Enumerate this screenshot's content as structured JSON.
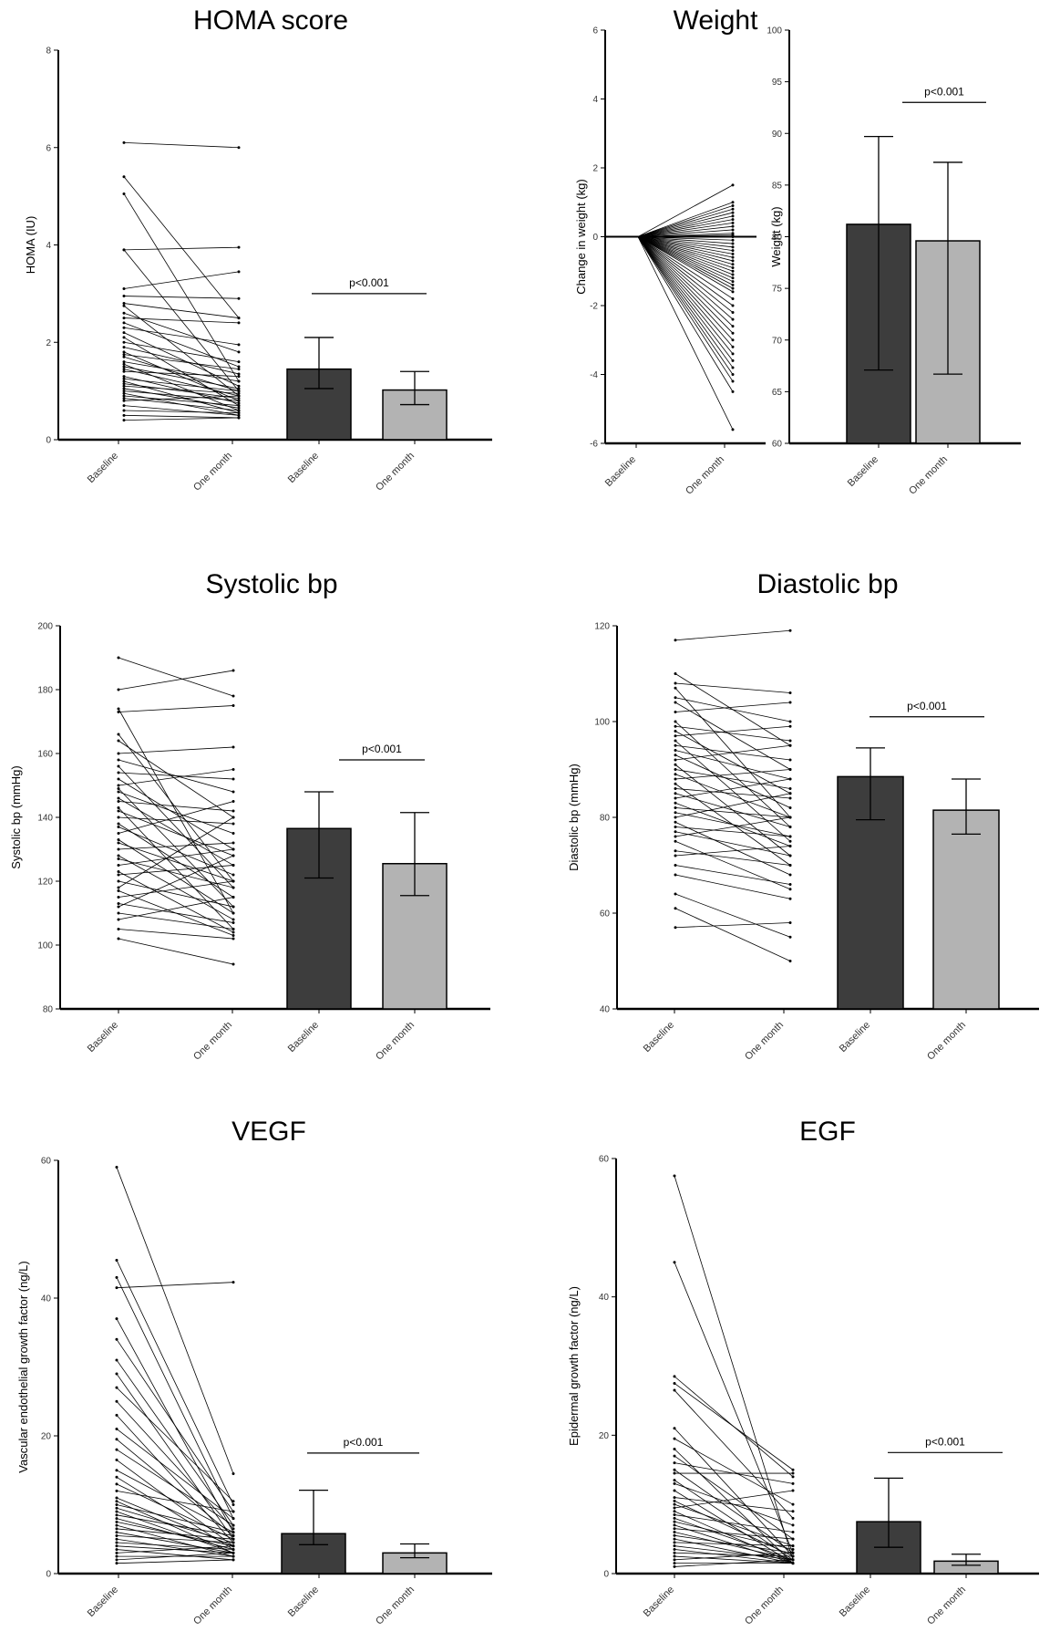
{
  "chart_data": [
    {
      "id": "homa",
      "type": "bar",
      "title": "HOMA score",
      "ylabel": "HOMA (IU)",
      "ylim": [
        0,
        8
      ],
      "yticks": [
        "0",
        "2",
        "4",
        "6",
        "8"
      ],
      "categories": [
        "Baseline",
        "One month",
        "Baseline",
        "One month"
      ],
      "pvalue": "p<0.001",
      "paired_lines": [
        [
          6.1,
          6.0
        ],
        [
          5.4,
          2.5
        ],
        [
          5.05,
          1.2
        ],
        [
          3.9,
          3.95
        ],
        [
          3.9,
          1.0
        ],
        [
          3.1,
          3.45
        ],
        [
          2.95,
          2.9
        ],
        [
          2.8,
          2.5
        ],
        [
          2.75,
          0.9
        ],
        [
          2.6,
          1.8
        ],
        [
          2.5,
          2.4
        ],
        [
          2.4,
          1.5
        ],
        [
          2.3,
          1.95
        ],
        [
          2.2,
          1.1
        ],
        [
          2.1,
          0.7
        ],
        [
          2.0,
          1.6
        ],
        [
          1.9,
          1.35
        ],
        [
          1.8,
          0.8
        ],
        [
          1.75,
          1.45
        ],
        [
          1.7,
          1.0
        ],
        [
          1.6,
          1.2
        ],
        [
          1.55,
          0.6
        ],
        [
          1.5,
          1.05
        ],
        [
          1.45,
          0.9
        ],
        [
          1.4,
          1.3
        ],
        [
          1.3,
          0.75
        ],
        [
          1.25,
          1.0
        ],
        [
          1.2,
          0.55
        ],
        [
          1.15,
          0.85
        ],
        [
          1.1,
          0.95
        ],
        [
          1.05,
          0.65
        ],
        [
          1.0,
          0.8
        ],
        [
          0.95,
          0.5
        ],
        [
          0.9,
          0.7
        ],
        [
          0.85,
          0.6
        ],
        [
          0.8,
          0.9
        ],
        [
          0.7,
          0.5
        ],
        [
          0.6,
          0.55
        ],
        [
          0.5,
          0.45
        ],
        [
          0.4,
          0.45
        ]
      ],
      "series": [
        {
          "name": "Baseline",
          "median": 1.45,
          "err_low": 1.05,
          "err_high": 2.1,
          "color": "#3d3d3d"
        },
        {
          "name": "One month",
          "median": 1.02,
          "err_low": 0.72,
          "err_high": 1.4,
          "color": "#b3b3b3"
        }
      ]
    },
    {
      "id": "weight_change",
      "type": "line",
      "title": "Weight",
      "ylabel": "Change in weight (kg)",
      "ylim": [
        -6,
        6
      ],
      "yticks": [
        "-6",
        "-4",
        "-2",
        "0",
        "2",
        "4",
        "6"
      ],
      "categories": [
        "Baseline",
        "One month"
      ],
      "change_values": [
        1.5,
        1.0,
        0.9,
        0.8,
        0.7,
        0.6,
        0.5,
        0.4,
        0.3,
        0.2,
        0.1,
        0.05,
        0.0,
        -0.1,
        -0.2,
        -0.3,
        -0.4,
        -0.5,
        -0.6,
        -0.7,
        -0.8,
        -0.9,
        -1.0,
        -1.1,
        -1.2,
        -1.3,
        -1.4,
        -1.5,
        -1.6,
        -1.8,
        -2.0,
        -2.2,
        -2.4,
        -2.6,
        -2.8,
        -3.0,
        -3.2,
        -3.4,
        -3.6,
        -3.8,
        -4.0,
        -4.2,
        -4.5,
        -5.6
      ]
    },
    {
      "id": "weight_bar",
      "type": "bar",
      "title": "",
      "ylabel": "Weight (kg)",
      "ylim": [
        60,
        100
      ],
      "yticks": [
        "60",
        "65",
        "70",
        "75",
        "80",
        "85",
        "90",
        "95",
        "100"
      ],
      "categories": [
        "Baseline",
        "One month"
      ],
      "pvalue": "p<0.001",
      "series": [
        {
          "name": "Baseline",
          "median": 81.2,
          "err_low": 67.1,
          "err_high": 89.7,
          "color": "#3d3d3d"
        },
        {
          "name": "One month",
          "median": 79.6,
          "err_low": 66.7,
          "err_high": 87.2,
          "color": "#b3b3b3"
        }
      ]
    },
    {
      "id": "systolic",
      "type": "bar",
      "title": "Systolic bp",
      "ylabel": "Systolic bp (mmHg)",
      "ylim": [
        80,
        200
      ],
      "yticks": [
        "80",
        "100",
        "120",
        "140",
        "160",
        "180",
        "200"
      ],
      "categories": [
        "Baseline",
        "One month",
        "Baseline",
        "One month"
      ],
      "pvalue": "p<0.001",
      "paired_lines": [
        [
          190,
          178
        ],
        [
          180,
          186
        ],
        [
          174,
          110
        ],
        [
          173,
          175
        ],
        [
          166,
          120
        ],
        [
          164,
          140
        ],
        [
          160,
          162
        ],
        [
          158,
          148
        ],
        [
          156,
          118
        ],
        [
          154,
          152
        ],
        [
          152,
          130
        ],
        [
          150,
          155
        ],
        [
          149,
          112
        ],
        [
          148,
          135
        ],
        [
          146,
          125
        ],
        [
          145,
          142
        ],
        [
          143,
          105
        ],
        [
          142,
          128
        ],
        [
          140,
          138
        ],
        [
          138,
          115
        ],
        [
          137,
          122
        ],
        [
          135,
          145
        ],
        [
          133,
          110
        ],
        [
          132,
          120
        ],
        [
          130,
          132
        ],
        [
          128,
          108
        ],
        [
          127,
          118
        ],
        [
          125,
          130
        ],
        [
          123,
          104
        ],
        [
          122,
          125
        ],
        [
          120,
          112
        ],
        [
          118,
          140
        ],
        [
          117,
          103
        ],
        [
          115,
          120
        ],
        [
          113,
          107
        ],
        [
          112,
          128
        ],
        [
          110,
          105
        ],
        [
          108,
          115
        ],
        [
          105,
          102
        ],
        [
          102,
          94
        ]
      ],
      "series": [
        {
          "name": "Baseline",
          "median": 136.5,
          "err_low": 121.0,
          "err_high": 148.0,
          "color": "#3d3d3d"
        },
        {
          "name": "One month",
          "median": 125.5,
          "err_low": 115.5,
          "err_high": 141.5,
          "color": "#b3b3b3"
        }
      ]
    },
    {
      "id": "diastolic",
      "type": "bar",
      "title": "Diastolic bp",
      "ylabel": "Diastolic bp (mmHg)",
      "ylim": [
        40,
        120
      ],
      "yticks": [
        "40",
        "60",
        "80",
        "100",
        "120"
      ],
      "categories": [
        "Baseline",
        "One month",
        "Baseline",
        "One month"
      ],
      "pvalue": "p<0.001",
      "paired_lines": [
        [
          117,
          119
        ],
        [
          110,
          95
        ],
        [
          108,
          106
        ],
        [
          107,
          80
        ],
        [
          105,
          100
        ],
        [
          104,
          90
        ],
        [
          102,
          104
        ],
        [
          100,
          78
        ],
        [
          99,
          96
        ],
        [
          98,
          85
        ],
        [
          97,
          99
        ],
        [
          96,
          75
        ],
        [
          95,
          92
        ],
        [
          94,
          88
        ],
        [
          93,
          82
        ],
        [
          92,
          95
        ],
        [
          91,
          72
        ],
        [
          90,
          86
        ],
        [
          89,
          80
        ],
        [
          88,
          90
        ],
        [
          87,
          70
        ],
        [
          86,
          84
        ],
        [
          85,
          78
        ],
        [
          84,
          88
        ],
        [
          83,
          74
        ],
        [
          82,
          80
        ],
        [
          81,
          76
        ],
        [
          80,
          85
        ],
        [
          79,
          68
        ],
        [
          78,
          76
        ],
        [
          77,
          72
        ],
        [
          76,
          80
        ],
        [
          75,
          65
        ],
        [
          73,
          70
        ],
        [
          72,
          74
        ],
        [
          70,
          66
        ],
        [
          68,
          63
        ],
        [
          64,
          55
        ],
        [
          61,
          50
        ],
        [
          57,
          58
        ]
      ],
      "series": [
        {
          "name": "Baseline",
          "median": 88.5,
          "err_low": 79.5,
          "err_high": 94.5,
          "color": "#3d3d3d"
        },
        {
          "name": "One month",
          "median": 81.5,
          "err_low": 76.5,
          "err_high": 88.0,
          "color": "#b3b3b3"
        }
      ]
    },
    {
      "id": "vegf",
      "type": "bar",
      "title": "VEGF",
      "ylabel": "Vascular endothelial growth factor (ng/L)",
      "ylim": [
        0,
        60
      ],
      "yticks": [
        "0",
        "20",
        "40",
        "60"
      ],
      "categories": [
        "Baseline",
        "One month",
        "Baseline",
        "One month"
      ],
      "pvalue": "p<0.001",
      "paired_lines": [
        [
          59,
          14.5
        ],
        [
          45.5,
          10
        ],
        [
          43,
          8
        ],
        [
          41.5,
          42.3
        ],
        [
          37,
          6
        ],
        [
          34,
          9
        ],
        [
          31,
          7
        ],
        [
          29,
          5
        ],
        [
          27,
          10.5
        ],
        [
          25,
          6.5
        ],
        [
          23,
          4.5
        ],
        [
          21,
          8
        ],
        [
          19.5,
          5.5
        ],
        [
          18,
          7
        ],
        [
          16.5,
          4
        ],
        [
          15,
          6
        ],
        [
          14,
          3.5
        ],
        [
          13,
          5
        ],
        [
          12,
          9
        ],
        [
          11,
          4
        ],
        [
          10.5,
          3
        ],
        [
          10,
          6
        ],
        [
          9.5,
          4.5
        ],
        [
          9,
          3
        ],
        [
          8.5,
          5.5
        ],
        [
          8,
          3.5
        ],
        [
          7.5,
          4
        ],
        [
          7,
          2.5
        ],
        [
          6.5,
          5
        ],
        [
          6,
          3
        ],
        [
          5.5,
          4.5
        ],
        [
          5,
          2.5
        ],
        [
          4.5,
          3.5
        ],
        [
          4,
          3
        ],
        [
          3.5,
          2
        ],
        [
          3,
          4
        ],
        [
          2.5,
          2.5
        ],
        [
          2,
          3
        ],
        [
          1.5,
          2
        ]
      ],
      "series": [
        {
          "name": "Baseline",
          "median": 5.8,
          "err_low": 4.2,
          "err_high": 12.1,
          "color": "#3d3d3d"
        },
        {
          "name": "One month",
          "median": 3.0,
          "err_low": 2.3,
          "err_high": 4.3,
          "color": "#b3b3b3"
        }
      ]
    },
    {
      "id": "egf",
      "type": "bar",
      "title": "EGF",
      "ylabel": "Epidermal growth factor (ng/L)",
      "ylim": [
        0,
        60
      ],
      "yticks": [
        "0",
        "20",
        "40",
        "60"
      ],
      "categories": [
        "Baseline",
        "One month",
        "Baseline",
        "One month"
      ],
      "pvalue": "p<0.001",
      "paired_lines": [
        [
          57.5,
          2
        ],
        [
          45,
          3
        ],
        [
          28.5,
          14
        ],
        [
          27.5,
          15
        ],
        [
          26.5,
          8
        ],
        [
          21,
          2.5
        ],
        [
          19.5,
          10
        ],
        [
          18,
          1.5
        ],
        [
          17,
          5
        ],
        [
          16,
          13
        ],
        [
          15,
          3
        ],
        [
          14.5,
          14.5
        ],
        [
          13.5,
          2
        ],
        [
          13,
          7
        ],
        [
          12,
          1.5
        ],
        [
          11,
          9
        ],
        [
          10.5,
          2.5
        ],
        [
          10,
          4
        ],
        [
          9.5,
          12
        ],
        [
          9,
          1.5
        ],
        [
          8.5,
          6
        ],
        [
          8,
          2
        ],
        [
          7.5,
          3.5
        ],
        [
          7,
          1.5
        ],
        [
          6.5,
          5
        ],
        [
          6,
          2
        ],
        [
          5.5,
          3
        ],
        [
          5,
          1.5
        ],
        [
          4.5,
          4
        ],
        [
          4,
          2
        ],
        [
          3.5,
          1.5
        ],
        [
          3,
          2.5
        ],
        [
          2.5,
          1.5
        ],
        [
          2,
          3
        ],
        [
          1.5,
          1.5
        ],
        [
          1,
          2
        ]
      ],
      "series": [
        {
          "name": "Baseline",
          "median": 7.5,
          "err_low": 3.8,
          "err_high": 13.8,
          "color": "#3d3d3d"
        },
        {
          "name": "One month",
          "median": 1.8,
          "err_low": 1.2,
          "err_high": 2.8,
          "color": "#b3b3b3"
        }
      ]
    }
  ]
}
